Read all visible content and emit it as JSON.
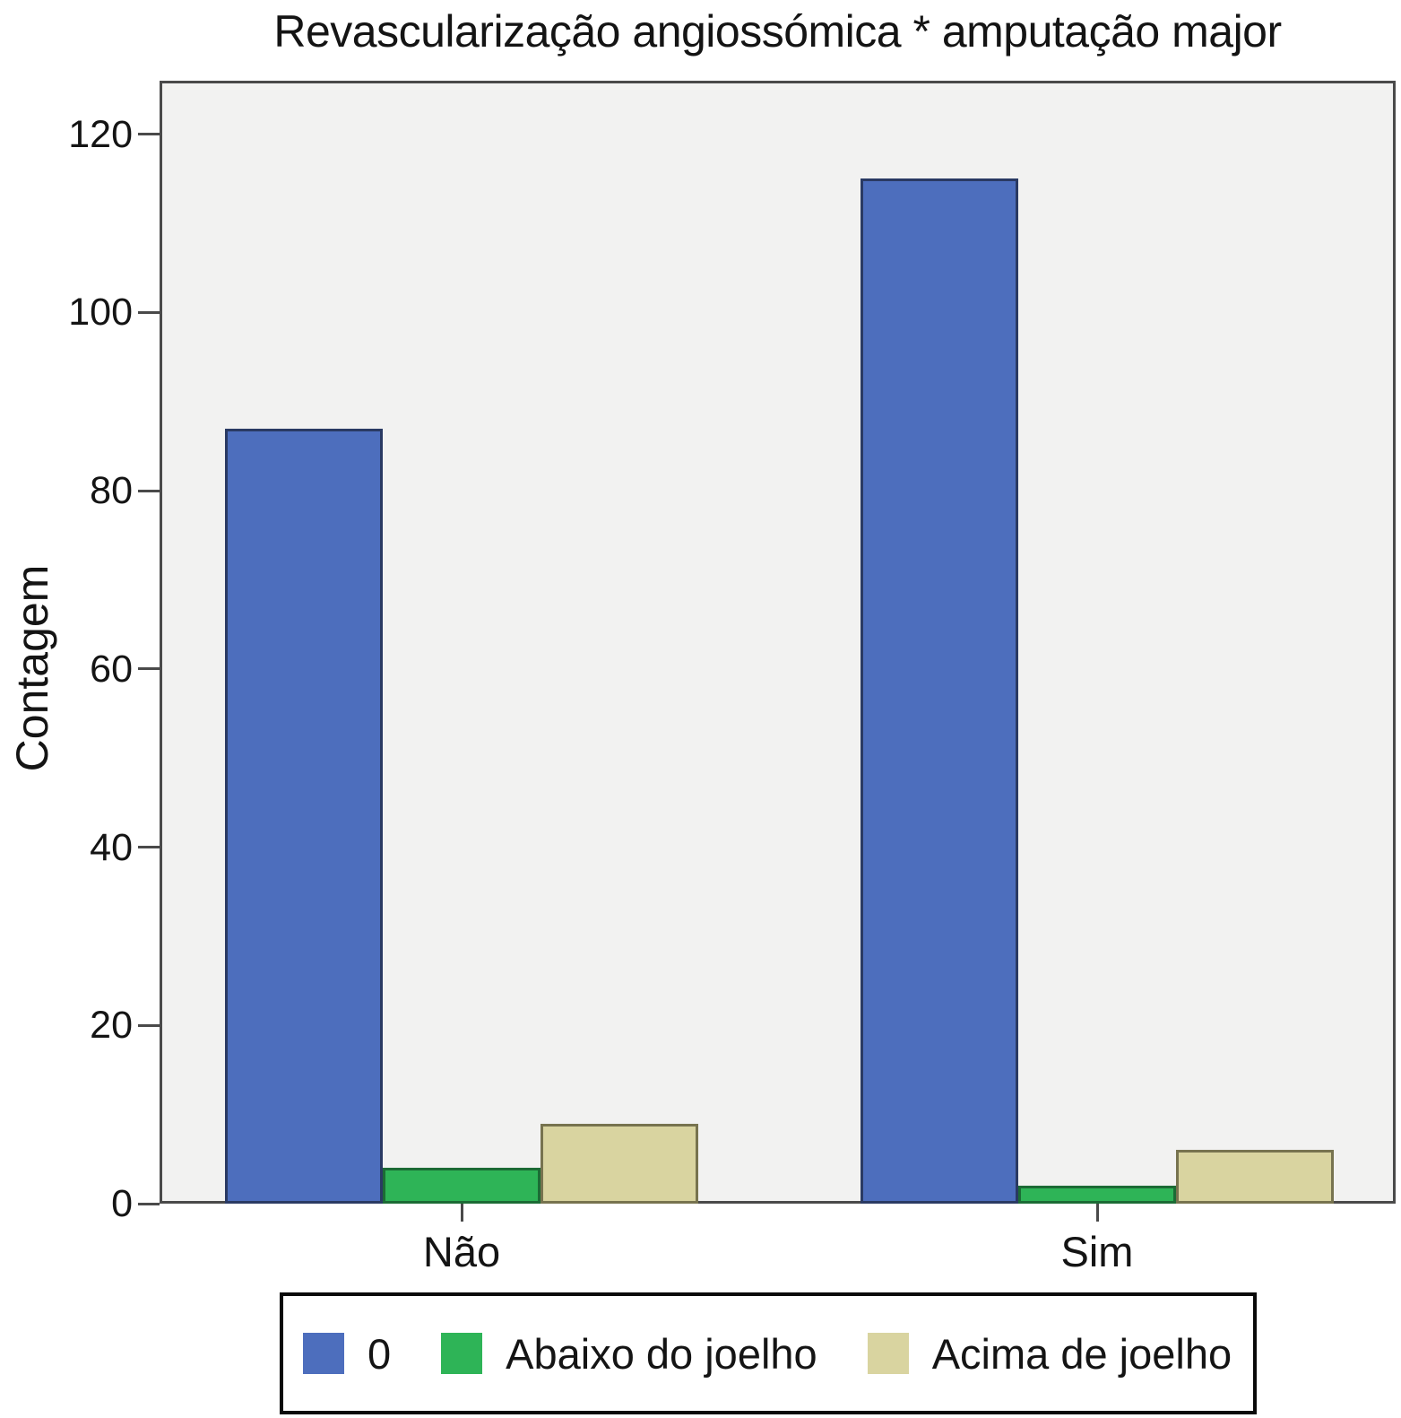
{
  "chart_data": {
    "type": "bar",
    "title": "Revascularização angiossómica * amputação major",
    "xlabel": "",
    "ylabel": "Contagem",
    "categories": [
      "Não",
      "Sim"
    ],
    "series": [
      {
        "name": "0",
        "color": "#4d6ebd",
        "border_color": "#2a3a63",
        "values": [
          87,
          115
        ]
      },
      {
        "name": "Abaixo do joelho",
        "color": "#2eb457",
        "border_color": "#1c6b35",
        "values": [
          4,
          2
        ]
      },
      {
        "name": "Acima de joelho",
        "color": "#d9d4a0",
        "border_color": "#77734f",
        "values": [
          9,
          6
        ]
      }
    ],
    "yticks": [
      0,
      20,
      40,
      60,
      80,
      100,
      120
    ],
    "ylim": [
      0,
      126
    ],
    "grid": false,
    "legend_position": "bottom",
    "plot_background": "#f2f2f1",
    "axis_color": "#4a4a4a"
  }
}
